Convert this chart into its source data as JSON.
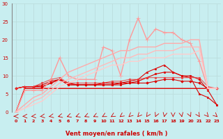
{
  "xlabel": "Vent moyen/en rafales ( km/h )",
  "background_color": "#c8eef0",
  "grid_color": "#aadddd",
  "xlim": [
    -0.5,
    23.5
  ],
  "ylim": [
    0,
    30
  ],
  "xticks": [
    0,
    1,
    2,
    3,
    4,
    5,
    6,
    7,
    8,
    9,
    10,
    11,
    12,
    13,
    14,
    15,
    16,
    17,
    18,
    19,
    20,
    21,
    22,
    23
  ],
  "yticks": [
    0,
    5,
    10,
    15,
    20,
    25,
    30
  ],
  "series": [
    {
      "x": [
        0,
        1,
        2,
        3,
        4,
        5,
        6,
        7,
        8,
        9,
        10,
        11,
        12,
        13,
        14,
        15,
        16,
        17,
        18,
        19,
        20,
        21,
        22,
        23
      ],
      "y": [
        0,
        6.5,
        6.5,
        6.5,
        6.5,
        6.5,
        6.5,
        6.5,
        6.5,
        6.5,
        6.5,
        6.5,
        6.5,
        6.5,
        6.5,
        6.5,
        6.5,
        6.5,
        6.5,
        6.5,
        6.5,
        6.5,
        6.5,
        6.5
      ],
      "color": "#dd0000",
      "lw": 1.0,
      "marker": null,
      "alpha": 1.0
    },
    {
      "x": [
        0,
        1,
        2,
        3,
        4,
        5,
        6,
        7,
        8,
        9,
        10,
        11,
        12,
        13,
        14,
        15,
        16,
        17,
        18,
        19,
        20,
        21,
        22,
        23
      ],
      "y": [
        6.5,
        7,
        7,
        7,
        8,
        9,
        8,
        7.5,
        7.5,
        7.5,
        8,
        8,
        8,
        8,
        8,
        8,
        8.5,
        9,
        9,
        8.5,
        8.5,
        8,
        6.5,
        6.5
      ],
      "color": "#dd0000",
      "lw": 0.8,
      "marker": "D",
      "markersize": 1.8,
      "alpha": 1.0
    },
    {
      "x": [
        0,
        1,
        2,
        3,
        4,
        5,
        6,
        7,
        8,
        9,
        10,
        11,
        12,
        13,
        14,
        15,
        16,
        17,
        18,
        19,
        20,
        21,
        22,
        23
      ],
      "y": [
        6.5,
        7,
        7,
        7,
        8,
        9,
        7.5,
        7.5,
        7.5,
        7.5,
        7.5,
        7.5,
        7.5,
        8,
        8.5,
        9.5,
        10.5,
        11,
        11,
        10,
        10,
        9,
        6,
        2
      ],
      "color": "#dd0000",
      "lw": 0.8,
      "marker": "s",
      "markersize": 1.8,
      "alpha": 1.0
    },
    {
      "x": [
        0,
        1,
        2,
        3,
        4,
        5,
        6,
        7,
        8,
        9,
        10,
        11,
        12,
        13,
        14,
        15,
        16,
        17,
        18,
        19,
        20,
        21,
        22,
        23
      ],
      "y": [
        6.5,
        7,
        7,
        7.5,
        8.5,
        9,
        7.5,
        7.5,
        7.5,
        7.5,
        7.5,
        7.5,
        8,
        8.5,
        9,
        11,
        12,
        13,
        11,
        10,
        9.5,
        5,
        4,
        2
      ],
      "color": "#dd0000",
      "lw": 0.8,
      "marker": "^",
      "markersize": 1.8,
      "alpha": 1.0
    },
    {
      "x": [
        0,
        1,
        2,
        3,
        4,
        5,
        6,
        7,
        8,
        9,
        10,
        11,
        12,
        13,
        14,
        15,
        16,
        17,
        18,
        19,
        20,
        21,
        22,
        23
      ],
      "y": [
        6.5,
        7,
        7,
        8,
        9,
        9.5,
        8,
        8,
        8,
        8,
        8,
        8.5,
        8.5,
        9,
        9,
        9.5,
        9.5,
        9.5,
        9.5,
        9.5,
        9.5,
        9.5,
        7,
        6.5
      ],
      "color": "#ee3333",
      "lw": 0.8,
      "marker": "o",
      "markersize": 1.8,
      "alpha": 0.8
    },
    {
      "x": [
        0,
        1,
        2,
        3,
        4,
        5,
        6,
        7,
        8,
        9,
        10,
        11,
        12,
        13,
        14,
        15,
        16,
        17,
        18,
        19,
        20,
        21,
        22,
        23
      ],
      "y": [
        0,
        6,
        6,
        6,
        9,
        15,
        10,
        9,
        9,
        9,
        18,
        17,
        10,
        20,
        26,
        20,
        23,
        22,
        22,
        20,
        19,
        14,
        6.5,
        6.5
      ],
      "color": "#ff9999",
      "lw": 1.0,
      "marker": "+",
      "markersize": 4,
      "alpha": 1.0
    },
    {
      "x": [
        0,
        1,
        2,
        3,
        4,
        5,
        6,
        7,
        8,
        9,
        10,
        11,
        12,
        13,
        14,
        15,
        16,
        17,
        18,
        19,
        20,
        21,
        22,
        23
      ],
      "y": [
        0,
        2,
        4,
        5,
        7,
        9,
        11,
        12,
        13,
        14,
        15,
        16,
        17,
        17,
        18,
        18,
        18,
        19,
        19,
        19,
        20,
        20,
        6.5,
        6.5
      ],
      "color": "#ffaaaa",
      "lw": 1.0,
      "marker": null,
      "alpha": 1.0
    },
    {
      "x": [
        0,
        1,
        2,
        3,
        4,
        5,
        6,
        7,
        8,
        9,
        10,
        11,
        12,
        13,
        14,
        15,
        16,
        17,
        18,
        19,
        20,
        21,
        22,
        23
      ],
      "y": [
        0,
        1,
        3,
        4,
        6,
        8,
        9,
        10,
        11,
        12,
        13,
        14,
        15,
        15,
        16,
        16,
        17,
        17,
        17,
        18,
        18,
        18,
        6.5,
        6.5
      ],
      "color": "#ffbbbb",
      "lw": 1.0,
      "marker": null,
      "alpha": 1.0
    },
    {
      "x": [
        0,
        1,
        2,
        3,
        4,
        5,
        6,
        7,
        8,
        9,
        10,
        11,
        12,
        13,
        14,
        15,
        16,
        17,
        18,
        19,
        20,
        21,
        22,
        23
      ],
      "y": [
        0,
        1,
        2,
        3,
        5,
        7,
        8,
        9,
        10,
        11,
        12,
        13,
        13,
        14,
        14,
        15,
        15,
        15,
        16,
        16,
        16,
        17,
        6.5,
        6.5
      ],
      "color": "#ffcccc",
      "lw": 1.0,
      "marker": null,
      "alpha": 1.0
    }
  ],
  "arrow_angles": [
    -180,
    -175,
    -170,
    -162,
    -155,
    -148,
    -142,
    -138,
    -135,
    -132,
    -128,
    -124,
    -120,
    -115,
    -110,
    -105,
    -100,
    -95,
    -90,
    -85,
    -80,
    -75,
    -70,
    -65
  ]
}
